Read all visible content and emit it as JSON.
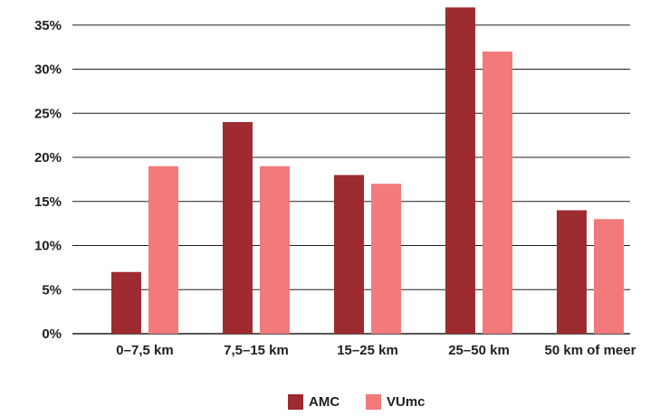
{
  "chart_data": {
    "type": "bar",
    "categories": [
      "0–7,5 km",
      "7,5–15 km",
      "15–25 km",
      "25–50 km",
      "50 km of meer"
    ],
    "series": [
      {
        "name": "AMC",
        "color": "#9e2b2f",
        "values": [
          7,
          24,
          18,
          37,
          14
        ]
      },
      {
        "name": "VUmc",
        "color": "#f27a7a",
        "values": [
          19,
          19,
          17,
          32,
          13
        ]
      }
    ],
    "y_ticks": [
      "0%",
      "5%",
      "10%",
      "15%",
      "20%",
      "25%",
      "30%",
      "35%"
    ],
    "ylim": [
      0,
      38
    ],
    "grid": true,
    "legend_position": "bottom-center",
    "title": "",
    "xlabel": "",
    "ylabel": ""
  }
}
